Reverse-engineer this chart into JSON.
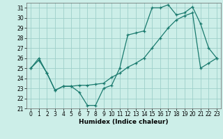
{
  "line1_x": [
    0,
    1,
    2,
    3,
    4,
    5,
    6,
    7,
    8,
    9,
    10,
    11,
    12,
    13,
    14,
    15,
    16,
    17,
    18,
    19,
    20,
    21,
    22,
    23
  ],
  "line1_y": [
    25.0,
    25.8,
    24.5,
    22.8,
    23.2,
    23.2,
    22.6,
    21.3,
    21.3,
    23.0,
    23.3,
    25.0,
    28.3,
    28.5,
    28.7,
    31.0,
    31.0,
    31.3,
    30.3,
    30.5,
    31.1,
    29.4,
    27.0,
    26.0
  ],
  "line2_x": [
    0,
    1,
    2,
    3,
    4,
    5,
    6,
    7,
    8,
    9,
    10,
    11,
    12,
    13,
    14,
    15,
    16,
    17,
    18,
    19,
    20,
    21,
    22,
    23
  ],
  "line2_y": [
    25.0,
    26.0,
    24.5,
    22.8,
    23.2,
    23.2,
    23.3,
    23.3,
    23.4,
    23.5,
    24.1,
    24.5,
    25.1,
    25.5,
    26.0,
    27.0,
    28.0,
    29.0,
    29.8,
    30.2,
    30.5,
    25.0,
    25.5,
    26.0
  ],
  "line_color": "#1a7a6e",
  "bg_color": "#cceee8",
  "grid_color": "#9ecfca",
  "xlabel": "Humidex (Indice chaleur)",
  "ylim_min": 21,
  "ylim_max": 31.5,
  "xlim_min": -0.5,
  "xlim_max": 23.5,
  "yticks": [
    21,
    22,
    23,
    24,
    25,
    26,
    27,
    28,
    29,
    30,
    31
  ],
  "xticks": [
    0,
    1,
    2,
    3,
    4,
    5,
    6,
    7,
    8,
    9,
    10,
    11,
    12,
    13,
    14,
    15,
    16,
    17,
    18,
    19,
    20,
    21,
    22,
    23
  ],
  "tick_fontsize": 5.5,
  "xlabel_fontsize": 6.5,
  "linewidth": 0.9,
  "markersize": 3.5
}
